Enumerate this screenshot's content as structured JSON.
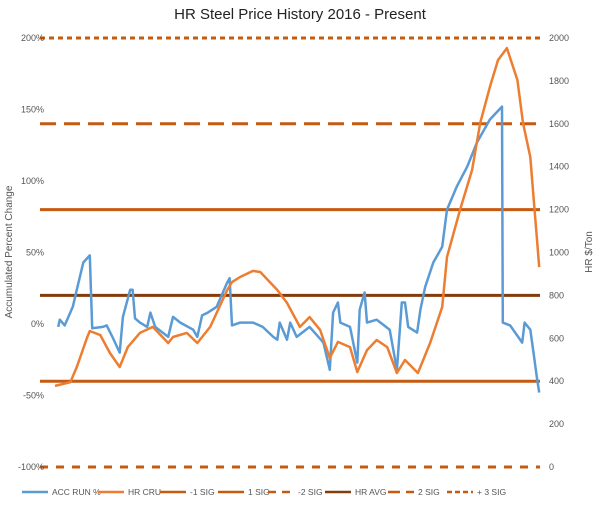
{
  "chart_data": {
    "type": "line",
    "title": "HR Steel Price History 2016 - Present",
    "ylabel": "Accumulated Percent Change",
    "y2label": "HR $/Ton",
    "ylim": [
      -100,
      200
    ],
    "y2lim": [
      0,
      2000
    ],
    "yticks": [
      "-100%",
      "-50%",
      "0%",
      "50%",
      "100%",
      "150%",
      "200%"
    ],
    "y2ticks": [
      "0",
      "200",
      "400",
      "600",
      "800",
      "1000",
      "1200",
      "1400",
      "1600",
      "1800",
      "2000"
    ],
    "xlim": [
      2016,
      2022
    ],
    "grid": false,
    "legend": "bottom",
    "series": [
      {
        "name": "ACC RUN %",
        "axis": "left",
        "color": "#5b9bd5",
        "points": [
          [
            2016.04,
            -2
          ],
          [
            2016.06,
            3
          ],
          [
            2016.12,
            -1
          ],
          [
            2016.22,
            12
          ],
          [
            2016.27,
            24
          ],
          [
            2016.35,
            43
          ],
          [
            2016.43,
            48
          ],
          [
            2016.46,
            -3
          ],
          [
            2016.59,
            -2
          ],
          [
            2016.64,
            -1
          ],
          [
            2016.71,
            -9
          ],
          [
            2016.8,
            -20
          ],
          [
            2016.84,
            5
          ],
          [
            2016.93,
            24
          ],
          [
            2016.96,
            24
          ],
          [
            2016.99,
            4
          ],
          [
            2017.05,
            1
          ],
          [
            2017.14,
            -2
          ],
          [
            2017.18,
            8
          ],
          [
            2017.24,
            -2
          ],
          [
            2017.4,
            -9
          ],
          [
            2017.46,
            5
          ],
          [
            2017.55,
            1
          ],
          [
            2017.71,
            -4
          ],
          [
            2017.76,
            -9
          ],
          [
            2017.82,
            6
          ],
          [
            2017.89,
            8
          ],
          [
            2018.0,
            12
          ],
          [
            2018.13,
            29
          ],
          [
            2018.16,
            32
          ],
          [
            2018.19,
            -1
          ],
          [
            2018.29,
            1
          ],
          [
            2018.45,
            1
          ],
          [
            2018.57,
            -2
          ],
          [
            2018.7,
            -9
          ],
          [
            2018.75,
            -11
          ],
          [
            2018.78,
            1
          ],
          [
            2018.87,
            -11
          ],
          [
            2018.91,
            1
          ],
          [
            2018.99,
            -9
          ],
          [
            2019.15,
            -2
          ],
          [
            2019.32,
            -13
          ],
          [
            2019.4,
            -32
          ],
          [
            2019.44,
            8
          ],
          [
            2019.5,
            15
          ],
          [
            2019.53,
            1
          ],
          [
            2019.65,
            -2
          ],
          [
            2019.74,
            -27
          ],
          [
            2019.77,
            10
          ],
          [
            2019.83,
            22
          ],
          [
            2019.86,
            1
          ],
          [
            2019.98,
            3
          ],
          [
            2020.14,
            -4
          ],
          [
            2020.23,
            -32
          ],
          [
            2020.29,
            15
          ],
          [
            2020.33,
            15
          ],
          [
            2020.37,
            -2
          ],
          [
            2020.48,
            -6
          ],
          [
            2020.52,
            10
          ],
          [
            2020.58,
            26
          ],
          [
            2020.68,
            43
          ],
          [
            2020.79,
            54
          ],
          [
            2020.85,
            80
          ],
          [
            2020.97,
            96
          ],
          [
            2021.1,
            110
          ],
          [
            2021.22,
            127
          ],
          [
            2021.38,
            143
          ],
          [
            2021.53,
            152
          ],
          [
            2021.54,
            1
          ],
          [
            2021.63,
            -1
          ],
          [
            2021.78,
            -13
          ],
          [
            2021.81,
            1
          ],
          [
            2021.88,
            -4
          ],
          [
            2021.92,
            -20
          ],
          [
            2021.96,
            -37
          ],
          [
            2021.99,
            -48
          ]
        ]
      },
      {
        "name": "HR CRU",
        "axis": "right",
        "color": "#ed7d31",
        "points": [
          [
            2016.0,
            378
          ],
          [
            2016.19,
            396
          ],
          [
            2016.27,
            466
          ],
          [
            2016.4,
            606
          ],
          [
            2016.43,
            634
          ],
          [
            2016.56,
            615
          ],
          [
            2016.68,
            531
          ],
          [
            2016.8,
            466
          ],
          [
            2016.9,
            559
          ],
          [
            2017.05,
            625
          ],
          [
            2017.21,
            653
          ],
          [
            2017.4,
            578
          ],
          [
            2017.46,
            606
          ],
          [
            2017.63,
            625
          ],
          [
            2017.76,
            578
          ],
          [
            2017.92,
            653
          ],
          [
            2018.13,
            825
          ],
          [
            2018.19,
            862
          ],
          [
            2018.29,
            886
          ],
          [
            2018.45,
            914
          ],
          [
            2018.54,
            909
          ],
          [
            2018.75,
            825
          ],
          [
            2018.87,
            765
          ],
          [
            2019.03,
            653
          ],
          [
            2019.15,
            699
          ],
          [
            2019.28,
            639
          ],
          [
            2019.4,
            508
          ],
          [
            2019.5,
            583
          ],
          [
            2019.65,
            559
          ],
          [
            2019.74,
            443
          ],
          [
            2019.86,
            545
          ],
          [
            2019.98,
            592
          ],
          [
            2020.11,
            559
          ],
          [
            2020.23,
            438
          ],
          [
            2020.33,
            499
          ],
          [
            2020.49,
            438
          ],
          [
            2020.64,
            578
          ],
          [
            2020.79,
            746
          ],
          [
            2020.85,
            979
          ],
          [
            2021.01,
            1198
          ],
          [
            2021.16,
            1385
          ],
          [
            2021.26,
            1604
          ],
          [
            2021.38,
            1772
          ],
          [
            2021.48,
            1897
          ],
          [
            2021.59,
            1953
          ],
          [
            2021.72,
            1804
          ],
          [
            2021.79,
            1604
          ],
          [
            2021.88,
            1445
          ],
          [
            2021.92,
            1259
          ],
          [
            2021.96,
            1072
          ],
          [
            2021.99,
            932
          ]
        ]
      }
    ],
    "reference_lines": [
      {
        "name": "-1 SIG",
        "value": 400,
        "style": "solid",
        "color": "#c55a11"
      },
      {
        "name": "1 SIG",
        "value": 1200,
        "style": "solid",
        "color": "#c55a11"
      },
      {
        "name": "-2 SIG",
        "value": 0,
        "style": "dashed",
        "color": "#c55a11"
      },
      {
        "name": "HR AVG",
        "value": 800,
        "style": "solid",
        "color": "#843c0c"
      },
      {
        "name": "2 SIG",
        "value": 1600,
        "style": "long-dash",
        "color": "#c55a11"
      },
      {
        "name": "+ 3 SIG",
        "value": 2000,
        "style": "dotted",
        "color": "#c55a11"
      }
    ]
  }
}
